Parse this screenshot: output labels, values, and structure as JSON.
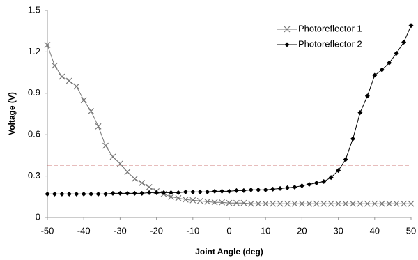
{
  "chart_data": {
    "type": "line",
    "xlabel": "Joint Angle (deg)",
    "ylabel": "Voltage (V)",
    "x": [
      -50,
      -48,
      -46,
      -44,
      -42,
      -40,
      -38,
      -36,
      -34,
      -32,
      -30,
      -28,
      -26,
      -24,
      -22,
      -20,
      -18,
      -16,
      -14,
      -12,
      -10,
      -8,
      -6,
      -4,
      -2,
      0,
      2,
      4,
      6,
      8,
      10,
      12,
      14,
      16,
      18,
      20,
      22,
      24,
      26,
      28,
      30,
      32,
      34,
      36,
      38,
      40,
      42,
      44,
      46,
      48,
      50
    ],
    "series": [
      {
        "name": "Photoreflector 1",
        "color": "#777777",
        "marker": "x",
        "values": [
          1.25,
          1.1,
          1.02,
          0.99,
          0.95,
          0.85,
          0.77,
          0.66,
          0.52,
          0.44,
          0.39,
          0.33,
          0.28,
          0.25,
          0.22,
          0.19,
          0.17,
          0.15,
          0.14,
          0.13,
          0.125,
          0.12,
          0.115,
          0.11,
          0.11,
          0.105,
          0.105,
          0.105,
          0.1,
          0.1,
          0.1,
          0.1,
          0.1,
          0.1,
          0.1,
          0.1,
          0.1,
          0.1,
          0.1,
          0.1,
          0.1,
          0.1,
          0.1,
          0.1,
          0.1,
          0.1,
          0.1,
          0.1,
          0.1,
          0.1,
          0.1
        ]
      },
      {
        "name": "Photoreflector 2",
        "color": "#000000",
        "marker": "diamond",
        "values": [
          0.17,
          0.17,
          0.17,
          0.17,
          0.17,
          0.17,
          0.17,
          0.17,
          0.17,
          0.175,
          0.175,
          0.175,
          0.175,
          0.175,
          0.18,
          0.18,
          0.18,
          0.18,
          0.18,
          0.185,
          0.185,
          0.185,
          0.185,
          0.19,
          0.19,
          0.19,
          0.195,
          0.195,
          0.2,
          0.2,
          0.2,
          0.205,
          0.21,
          0.215,
          0.22,
          0.23,
          0.24,
          0.25,
          0.26,
          0.29,
          0.34,
          0.42,
          0.57,
          0.76,
          0.88,
          1.03,
          1.07,
          1.12,
          1.19,
          1.27,
          1.39
        ]
      }
    ],
    "reference_line": {
      "value": 0.38,
      "color": "#c0504d"
    },
    "xlim": [
      -50,
      50
    ],
    "xticks": [
      -50,
      -40,
      -30,
      -20,
      -10,
      0,
      10,
      20,
      30,
      40,
      50
    ],
    "ylim": [
      0,
      1.5
    ],
    "yticks": [
      0,
      0.3,
      0.6,
      0.9,
      1.2,
      1.5
    ],
    "grid": false,
    "legend": "top-right"
  }
}
